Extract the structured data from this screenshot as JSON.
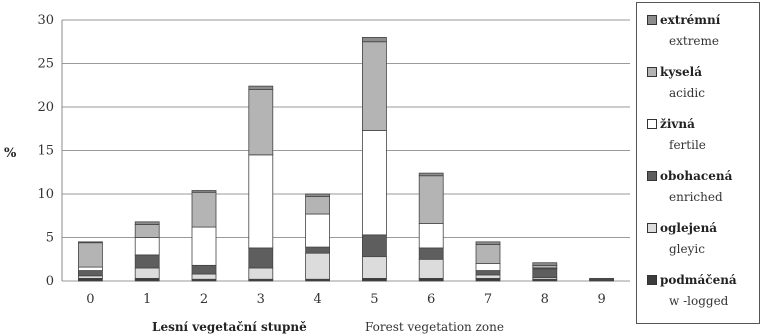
{
  "chart_data": {
    "type": "bar",
    "stacked": true,
    "categories": [
      "0",
      "1",
      "2",
      "3",
      "4",
      "5",
      "6",
      "7",
      "8",
      "9"
    ],
    "ylabel": "%",
    "xlabel_cz": "Lesní vegetační stupně",
    "xlabel_en": "Forest vegetation zone",
    "ylim": [
      0,
      30
    ],
    "yticks": [
      0,
      5,
      10,
      15,
      20,
      25,
      30
    ],
    "grid": true,
    "legend_position": "right",
    "series": [
      {
        "name": "podmáčená",
        "name_en": "w -logged",
        "color": "#3c3c3c",
        "values": [
          0.3,
          0.3,
          0.2,
          0.2,
          0.2,
          0.3,
          0.3,
          0.3,
          0.2,
          0.1
        ]
      },
      {
        "name": "oglejená",
        "name_en": "gleyic",
        "color": "#dcdcdc",
        "values": [
          0.3,
          1.2,
          0.6,
          1.3,
          3.0,
          2.5,
          2.2,
          0.4,
          0.2,
          0.0
        ]
      },
      {
        "name": "obohacená",
        "name_en": "enriched",
        "color": "#5e5e5e",
        "values": [
          0.6,
          1.5,
          1.0,
          2.3,
          0.7,
          2.5,
          1.3,
          0.5,
          1.0,
          0.0
        ]
      },
      {
        "name": "živná",
        "name_en": "fertile",
        "color": "#ffffff",
        "values": [
          0.4,
          2.0,
          4.4,
          10.7,
          3.8,
          12.0,
          2.8,
          0.8,
          0.1,
          0.0
        ]
      },
      {
        "name": "kyselá",
        "name_en": "acidic",
        "color": "#b4b4b4",
        "values": [
          2.8,
          1.5,
          4.0,
          7.5,
          2.0,
          10.2,
          5.5,
          2.2,
          0.3,
          0.1
        ]
      },
      {
        "name": "extrémní",
        "name_en": "extreme",
        "color": "#8c8c8c",
        "values": [
          0.1,
          0.3,
          0.2,
          0.4,
          0.3,
          0.5,
          0.3,
          0.3,
          0.3,
          0.1
        ]
      }
    ]
  }
}
